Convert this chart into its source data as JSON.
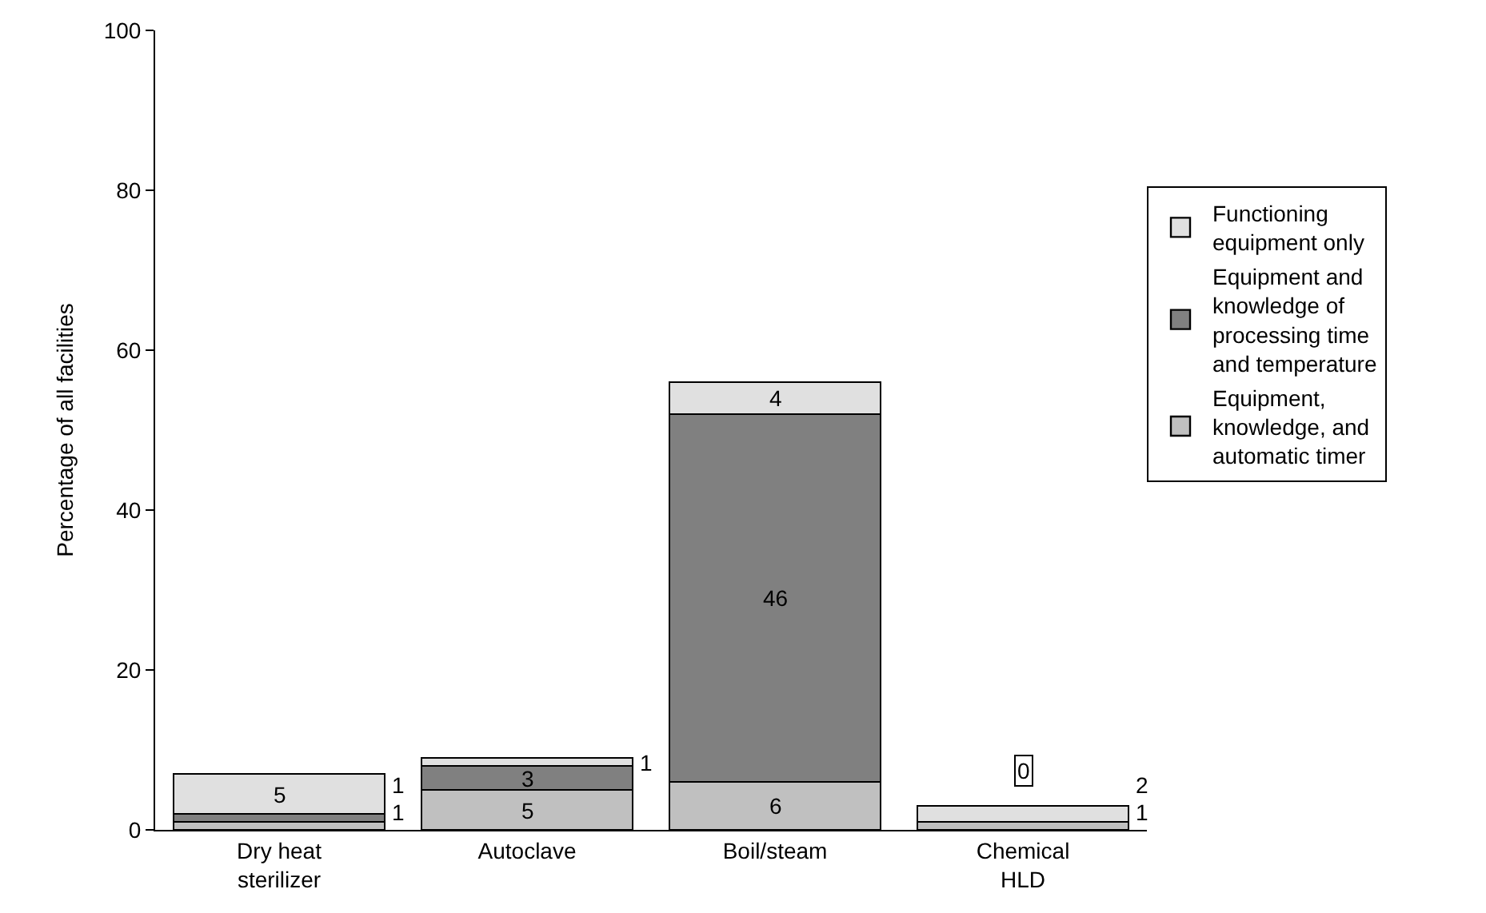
{
  "chart_data": {
    "type": "bar",
    "stacked": true,
    "ylabel": "Percentage of all facilities",
    "categories": [
      "Dry heat sterilizer",
      "Autoclave",
      "Boil/steam",
      "Chemical HLD"
    ],
    "series": [
      {
        "name": "Equipment, knowledge, and automatic timer",
        "color": "#c0c0c0",
        "values": [
          1,
          5,
          6,
          1
        ]
      },
      {
        "name": "Equipment and knowledge of processing time and temperature",
        "color": "#808080",
        "values": [
          1,
          3,
          46,
          0
        ]
      },
      {
        "name": "Functioning equipment only",
        "color": "#e0e0e0",
        "values": [
          5,
          1,
          4,
          2
        ]
      }
    ],
    "ylim": [
      0,
      100
    ],
    "yticks": [
      0,
      20,
      40,
      60,
      80,
      100
    ],
    "grid": false,
    "legend": "right",
    "data_labels": true
  }
}
